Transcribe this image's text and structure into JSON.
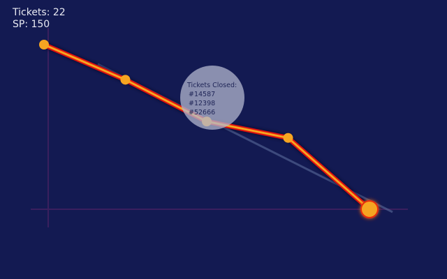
{
  "stats": {
    "tickets_label": "Tickets: 22",
    "sp_label": "SP: 150"
  },
  "chart_data": {
    "type": "line",
    "title": "",
    "xlabel": "",
    "ylabel": "",
    "x": [
      1,
      2,
      3,
      4,
      5
    ],
    "series": [
      {
        "values": [
          150,
          118,
          80,
          65,
          0
        ]
      }
    ],
    "ylim": [
      0,
      150
    ],
    "xlim": [
      1,
      5
    ],
    "grid": false,
    "tooltip": {
      "title": "Tickets Closed:",
      "items": [
        "#14587",
        "#12398",
        "#52666"
      ]
    }
  },
  "colors": {
    "background": "#131a52",
    "line_outer": "#e01010",
    "line_inner": "#f6a521",
    "point": "#f6a521",
    "axis": "#3a1f5e",
    "trend": "#5a6a9a",
    "tooltip_bg": "#b3b7cf"
  }
}
